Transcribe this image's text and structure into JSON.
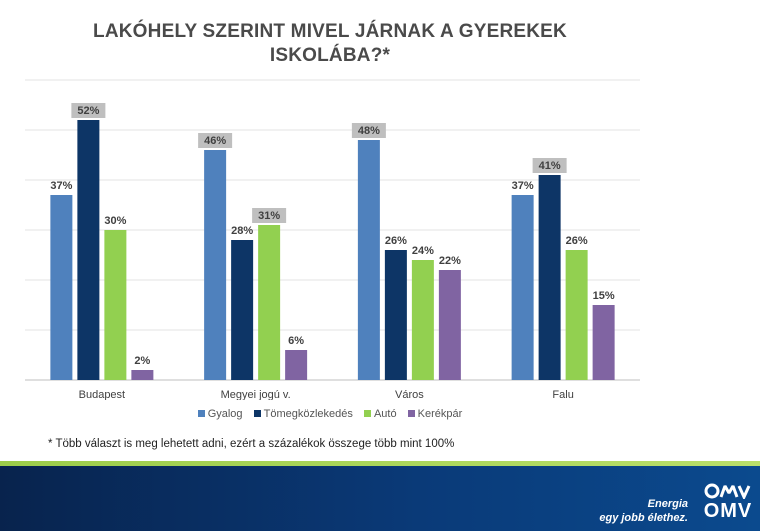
{
  "title_lines": [
    "LAKÓHELY SZERINT MIVEL JÁRNAK A GYEREKEK",
    "ISKOLÁBA?*"
  ],
  "footnote": "* Több választ is meg lehetett adni, ezért a százalékok összege több mint 100%",
  "footer": {
    "slogan_lines": [
      "Energia",
      "egy jobb élethez."
    ],
    "brand": "OMV"
  },
  "colors": {
    "gyalog": "#4f81bd",
    "tomeg": "#0d3566",
    "auto": "#92d050",
    "kerekpar": "#8064a2",
    "highlight": "#bfbfbf"
  },
  "chart_data": {
    "type": "bar",
    "title": "LAKÓHELY SZERINT MIVEL JÁRNAK A GYEREKEK ISKOLÁBA?*",
    "categories": [
      "Budapest",
      "Megyei jogú v.",
      "Város",
      "Falu"
    ],
    "series": [
      {
        "name": "Gyalog",
        "values": [
          37,
          46,
          48,
          37
        ],
        "labels": [
          "37%",
          "46%",
          "48%",
          "37%"
        ]
      },
      {
        "name": "Tömegközlekedés",
        "values": [
          52,
          28,
          26,
          41
        ],
        "labels": [
          "52%",
          "28%",
          "26%",
          "41%"
        ]
      },
      {
        "name": "Autó",
        "values": [
          30,
          31,
          24,
          26
        ],
        "labels": [
          "30%",
          "31%",
          "24%",
          "26%"
        ]
      },
      {
        "name": "Kerékpár",
        "values": [
          2,
          6,
          22,
          15
        ],
        "labels": [
          "2%",
          "6%",
          "22%",
          "15%"
        ]
      }
    ],
    "highlighted_max": [
      [
        0,
        1
      ],
      [
        1,
        0
      ],
      [
        1,
        2
      ],
      [
        2,
        0
      ],
      [
        3,
        1
      ]
    ],
    "ylim": [
      0,
      60
    ],
    "grid": true,
    "legend_position": "bottom"
  }
}
